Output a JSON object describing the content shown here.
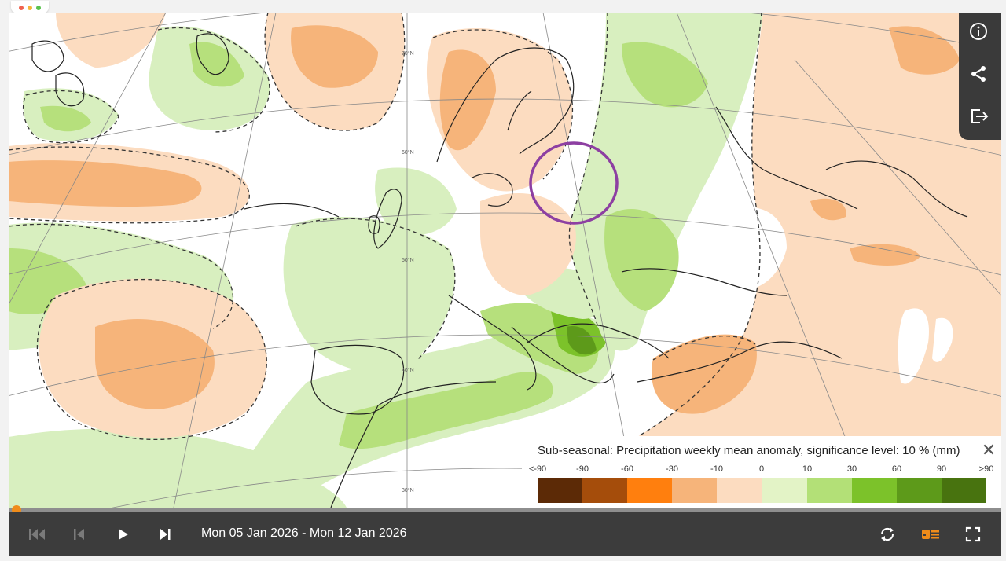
{
  "window": {
    "dots": [
      "#f0624f",
      "#f5b63a",
      "#5ac24d"
    ]
  },
  "map": {
    "lat_labels": [
      "70°N",
      "60°N",
      "50°N",
      "40°N",
      "30°N"
    ],
    "highlight_circle_color": "#8d3fa2"
  },
  "side_tools": {
    "info": "info-icon",
    "share": "share-icon",
    "export": "export-icon"
  },
  "legend": {
    "title": "Sub-seasonal: Precipitation weekly mean anomaly, significance level: 10 % (mm)",
    "close_icon": "close-icon",
    "labels": [
      "<-90",
      "-90",
      "-60",
      "-30",
      "-10",
      "0",
      "10",
      "30",
      "60",
      "90",
      ">90"
    ],
    "colors": [
      "#5c2a06",
      "#a54d0b",
      "#ff7f0e",
      "#f6b47a",
      "#fcdcc0",
      "#e3f3c6",
      "#b3e077",
      "#7cc22a",
      "#5d9a1a",
      "#48730f"
    ]
  },
  "timeline": {
    "progress": 0.0
  },
  "controls": {
    "first_icon": "skip-first-icon",
    "prev_icon": "skip-prev-icon",
    "play_icon": "play-icon",
    "next_icon": "skip-next-icon",
    "date_range": "Mon 05 Jan 2026 - Mon 12 Jan 2026",
    "loop_icon": "loop-icon",
    "layers_icon": "legend-toggle-icon",
    "accent": "#f08c1a",
    "fullscreen_icon": "fullscreen-icon"
  }
}
